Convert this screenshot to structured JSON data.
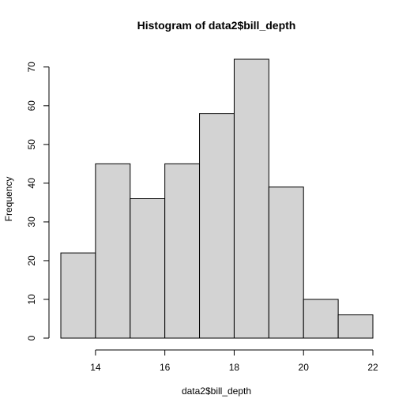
{
  "chart_data": {
    "type": "bar",
    "title": "Histogram of data2$bill_depth",
    "xlabel": "data2$bill_depth",
    "ylabel": "Frequency",
    "bins": [
      {
        "start": 13,
        "end": 14,
        "count": 22
      },
      {
        "start": 14,
        "end": 15,
        "count": 45
      },
      {
        "start": 15,
        "end": 16,
        "count": 36
      },
      {
        "start": 16,
        "end": 17,
        "count": 45
      },
      {
        "start": 17,
        "end": 18,
        "count": 58
      },
      {
        "start": 18,
        "end": 19,
        "count": 72
      },
      {
        "start": 19,
        "end": 20,
        "count": 39
      },
      {
        "start": 20,
        "end": 21,
        "count": 10
      },
      {
        "start": 21,
        "end": 22,
        "count": 6
      }
    ],
    "x_ticks": [
      14,
      16,
      18,
      20,
      22
    ],
    "y_ticks": [
      0,
      10,
      20,
      30,
      40,
      50,
      60,
      70
    ],
    "xlim": [
      13,
      22
    ],
    "ylim": [
      0,
      72
    ],
    "grid": false,
    "bar_color": "#d3d3d3",
    "border_color": "#000000"
  }
}
